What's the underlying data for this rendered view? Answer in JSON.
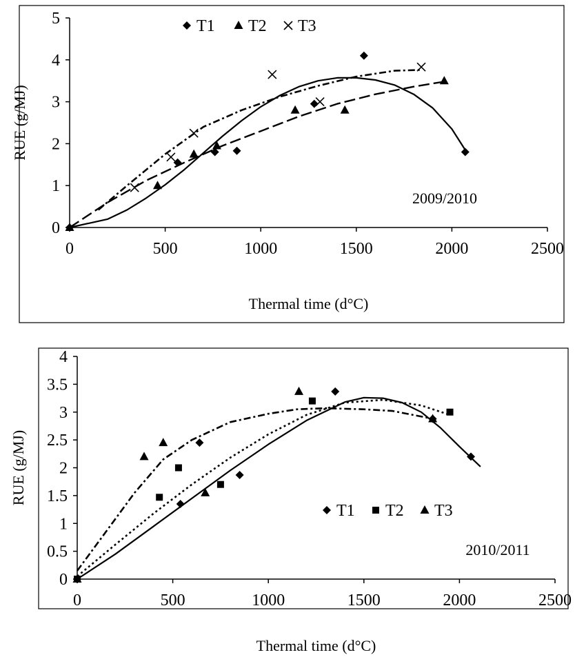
{
  "chart_data": [
    {
      "type": "scatter",
      "title": "",
      "xlabel": "Thermal time (d°C)",
      "ylabel": "RUE (g/MJ)",
      "xlim": [
        0,
        2500
      ],
      "ylim": [
        0,
        5
      ],
      "xticks": [
        "0",
        "500",
        "1000",
        "1500",
        "2000",
        "2500"
      ],
      "yticks": [
        "0",
        "1",
        "2",
        "3",
        "4",
        "5"
      ],
      "annotation": "2009/2010",
      "legend": "top-left",
      "series": [
        {
          "name": "T1",
          "marker": "diamond",
          "line": "solid",
          "points": [
            [
              0,
              0
            ],
            [
              565,
              1.55
            ],
            [
              760,
              1.8
            ],
            [
              875,
              1.83
            ],
            [
              1280,
              2.95
            ],
            [
              1540,
              4.1
            ],
            [
              2070,
              1.8
            ]
          ],
          "fit": [
            [
              0,
              0
            ],
            [
              100,
              0.1
            ],
            [
              200,
              0.2
            ],
            [
              300,
              0.42
            ],
            [
              400,
              0.7
            ],
            [
              500,
              1.02
            ],
            [
              600,
              1.38
            ],
            [
              700,
              1.78
            ],
            [
              800,
              2.18
            ],
            [
              900,
              2.55
            ],
            [
              1000,
              2.88
            ],
            [
              1100,
              3.15
            ],
            [
              1200,
              3.36
            ],
            [
              1300,
              3.5
            ],
            [
              1400,
              3.57
            ],
            [
              1500,
              3.57
            ],
            [
              1600,
              3.52
            ],
            [
              1700,
              3.4
            ],
            [
              1800,
              3.18
            ],
            [
              1900,
              2.85
            ],
            [
              2000,
              2.35
            ],
            [
              2070,
              1.85
            ]
          ]
        },
        {
          "name": "T2",
          "marker": "triangle",
          "line": "long-dash",
          "points": [
            [
              0,
              0
            ],
            [
              460,
              1.0
            ],
            [
              650,
              1.75
            ],
            [
              770,
              1.95
            ],
            [
              1180,
              2.8
            ],
            [
              1440,
              2.8
            ],
            [
              1960,
              3.5
            ]
          ],
          "fit": [
            [
              0,
              0
            ],
            [
              200,
              0.6
            ],
            [
              400,
              1.12
            ],
            [
              600,
              1.55
            ],
            [
              800,
              1.95
            ],
            [
              1000,
              2.3
            ],
            [
              1200,
              2.65
            ],
            [
              1400,
              2.95
            ],
            [
              1600,
              3.18
            ],
            [
              1800,
              3.36
            ],
            [
              1960,
              3.48
            ]
          ]
        },
        {
          "name": "T3",
          "marker": "x",
          "line": "dash-dot",
          "points": [
            [
              340,
              0.95
            ],
            [
              530,
              1.68
            ],
            [
              650,
              2.25
            ],
            [
              1060,
              3.65
            ],
            [
              1310,
              3.0
            ],
            [
              1840,
              3.83
            ]
          ],
          "fit": [
            [
              150,
              0.42
            ],
            [
              300,
              1.0
            ],
            [
              500,
              1.75
            ],
            [
              700,
              2.4
            ],
            [
              900,
              2.8
            ],
            [
              1100,
              3.12
            ],
            [
              1300,
              3.38
            ],
            [
              1500,
              3.6
            ],
            [
              1700,
              3.74
            ],
            [
              1840,
              3.76
            ]
          ]
        }
      ]
    },
    {
      "type": "scatter",
      "title": "",
      "xlabel": "Thermal time (d°C)",
      "ylabel": "RUE (g/MJ)",
      "xlim": [
        0,
        2500
      ],
      "ylim": [
        0,
        4
      ],
      "xticks": [
        "0",
        "500",
        "1000",
        "1500",
        "2000",
        "2500"
      ],
      "yticks": [
        "0",
        "0.5",
        "1",
        "1.5",
        "2",
        "2.5",
        "3",
        "3.5",
        "4"
      ],
      "annotation": "2010/2011",
      "legend": "center-right",
      "series": [
        {
          "name": "T1",
          "marker": "diamond",
          "line": "solid",
          "points": [
            [
              0,
              0
            ],
            [
              540,
              1.35
            ],
            [
              640,
              2.45
            ],
            [
              850,
              1.87
            ],
            [
              1350,
              3.37
            ],
            [
              1860,
              2.88
            ],
            [
              2060,
              2.2
            ]
          ],
          "fit": [
            [
              0,
              0
            ],
            [
              200,
              0.45
            ],
            [
              400,
              0.95
            ],
            [
              600,
              1.45
            ],
            [
              800,
              1.95
            ],
            [
              1000,
              2.42
            ],
            [
              1200,
              2.85
            ],
            [
              1400,
              3.18
            ],
            [
              1500,
              3.26
            ],
            [
              1600,
              3.25
            ],
            [
              1700,
              3.17
            ],
            [
              1800,
              3.0
            ],
            [
              1900,
              2.72
            ],
            [
              2000,
              2.38
            ],
            [
              2110,
              2.02
            ]
          ]
        },
        {
          "name": "T2",
          "marker": "square",
          "line": "dotted",
          "points": [
            [
              0,
              0
            ],
            [
              430,
              1.47
            ],
            [
              530,
              2.0
            ],
            [
              750,
              1.7
            ],
            [
              1230,
              3.2
            ],
            [
              1950,
              3.0
            ]
          ],
          "fit": [
            [
              0,
              0.05
            ],
            [
              200,
              0.62
            ],
            [
              400,
              1.18
            ],
            [
              600,
              1.7
            ],
            [
              800,
              2.18
            ],
            [
              1000,
              2.6
            ],
            [
              1200,
              2.95
            ],
            [
              1400,
              3.17
            ],
            [
              1600,
              3.22
            ],
            [
              1800,
              3.12
            ],
            [
              1950,
              2.95
            ]
          ]
        },
        {
          "name": "T3",
          "marker": "triangle",
          "line": "dash-dot",
          "points": [
            [
              0,
              0
            ],
            [
              350,
              2.2
            ],
            [
              450,
              2.45
            ],
            [
              670,
              1.55
            ],
            [
              1160,
              3.37
            ],
            [
              1860,
              2.88
            ]
          ],
          "fit": [
            [
              0,
              0.15
            ],
            [
              150,
              0.85
            ],
            [
              300,
              1.55
            ],
            [
              450,
              2.15
            ],
            [
              600,
              2.5
            ],
            [
              800,
              2.82
            ],
            [
              1000,
              2.97
            ],
            [
              1150,
              3.05
            ],
            [
              1300,
              3.07
            ],
            [
              1500,
              3.05
            ],
            [
              1650,
              3.02
            ],
            [
              1860,
              2.88
            ]
          ]
        }
      ]
    }
  ]
}
